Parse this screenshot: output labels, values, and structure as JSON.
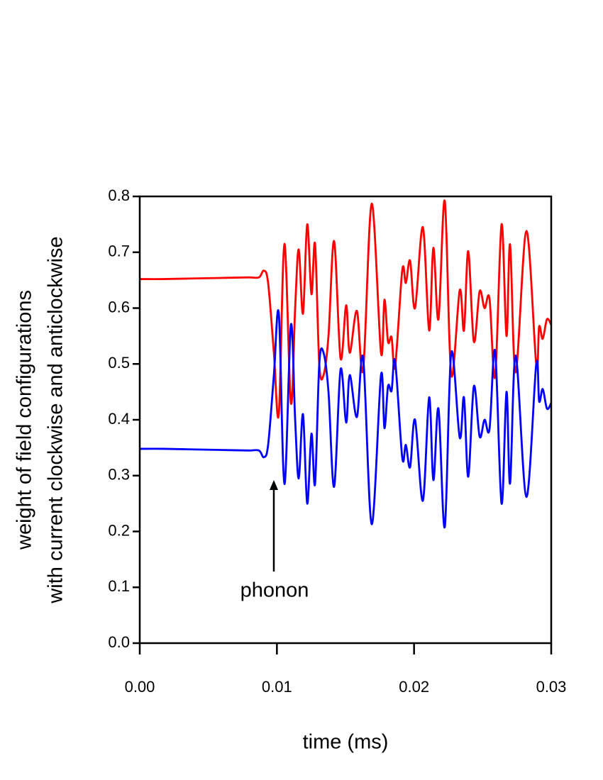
{
  "chart_data": {
    "type": "line",
    "xlabel": "time (ms)",
    "ylabel": [
      "weight of field configurations",
      "with current clockwise and anticlockwise"
    ],
    "annotation": "phonon",
    "x": [
      0,
      0.00171,
      0.00378,
      0.00584,
      0.00791,
      0.00869,
      0.00905,
      0.00936,
      0.00978,
      0.01014,
      0.01055,
      0.01102,
      0.01133,
      0.01159,
      0.0119,
      0.01221,
      0.01252,
      0.01278,
      0.01309,
      0.0134,
      0.01376,
      0.01417,
      0.01464,
      0.01505,
      0.01531,
      0.01583,
      0.01629,
      0.01691,
      0.01759,
      0.01784,
      0.0181,
      0.01836,
      0.01862,
      0.01914,
      0.0194,
      0.01971,
      0.02007,
      0.02064,
      0.0211,
      0.02141,
      0.02178,
      0.02224,
      0.02271,
      0.02333,
      0.02364,
      0.02395,
      0.02436,
      0.02478,
      0.02514,
      0.0255,
      0.02591,
      0.02638,
      0.02674,
      0.027,
      0.02741,
      0.02819,
      0.02891,
      0.02912,
      0.02938,
      0.02969,
      0.03
    ],
    "series": [
      {
        "color": "#ff0000",
        "values": [
          0.652,
          0.652,
          0.653,
          0.654,
          0.655,
          0.655,
          0.667,
          0.645,
          0.52,
          0.41,
          0.715,
          0.43,
          0.6,
          0.705,
          0.59,
          0.75,
          0.625,
          0.715,
          0.5,
          0.48,
          0.55,
          0.72,
          0.51,
          0.605,
          0.52,
          0.595,
          0.49,
          0.787,
          0.52,
          0.615,
          0.54,
          0.548,
          0.495,
          0.668,
          0.645,
          0.685,
          0.6,
          0.745,
          0.56,
          0.708,
          0.58,
          0.792,
          0.48,
          0.632,
          0.56,
          0.702,
          0.54,
          0.63,
          0.6,
          0.617,
          0.477,
          0.75,
          0.55,
          0.714,
          0.485,
          0.738,
          0.5,
          0.567,
          0.545,
          0.58,
          0.57
        ]
      },
      {
        "color": "#0000ff",
        "values": [
          0.348,
          0.348,
          0.347,
          0.346,
          0.345,
          0.345,
          0.333,
          0.355,
          0.48,
          0.59,
          0.285,
          0.57,
          0.4,
          0.295,
          0.41,
          0.25,
          0.375,
          0.285,
          0.5,
          0.52,
          0.45,
          0.28,
          0.49,
          0.395,
          0.48,
          0.405,
          0.51,
          0.213,
          0.48,
          0.385,
          0.46,
          0.452,
          0.505,
          0.332,
          0.355,
          0.315,
          0.4,
          0.255,
          0.44,
          0.292,
          0.42,
          0.208,
          0.52,
          0.368,
          0.44,
          0.298,
          0.46,
          0.37,
          0.4,
          0.383,
          0.523,
          0.25,
          0.45,
          0.286,
          0.515,
          0.262,
          0.5,
          0.433,
          0.455,
          0.42,
          0.43
        ]
      }
    ],
    "xlim": [
      0,
      0.03
    ],
    "xticks": [
      {
        "value": 0,
        "label": "0.00"
      },
      {
        "value": 0.01,
        "label": "0.01"
      },
      {
        "value": 0.02,
        "label": "0.02"
      },
      {
        "value": 0.03,
        "label": "0.03"
      }
    ],
    "ylim": [
      0,
      0.8
    ],
    "yticks": [
      {
        "value": 0,
        "label": "0.0"
      },
      0.1,
      0.2,
      0.3,
      0.4,
      0.5,
      0.6,
      0.7,
      0.8
    ],
    "grid": false
  }
}
